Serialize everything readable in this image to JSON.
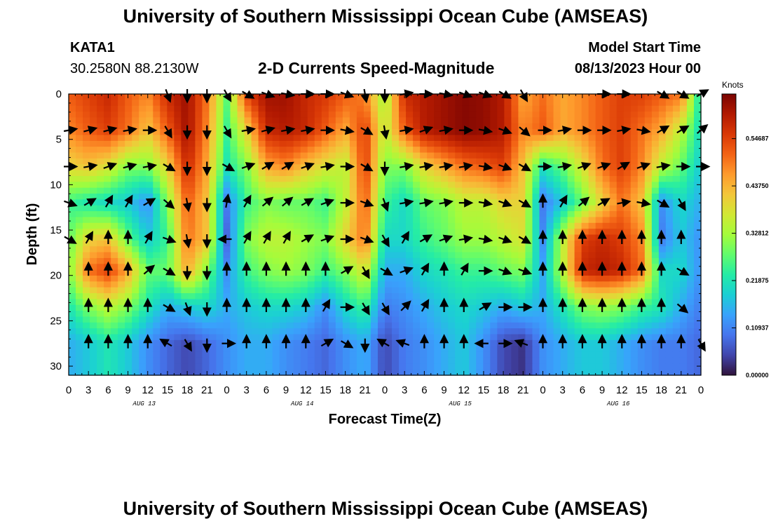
{
  "page": {
    "title": "University of Southern Mississippi Ocean Cube (AMSEAS)",
    "station": "KATA1",
    "coords": "30.2580N  88.2130W",
    "subtitle": "2-D Currents Speed-Magnitude",
    "model_start_label": "Model Start Time",
    "model_start_value": "08/13/2023 Hour 00",
    "bottom_title": "University of Southern Mississippi Ocean Cube (AMSEAS)"
  },
  "chart_data": {
    "type": "heatmap",
    "title": "2-D Currents Speed-Magnitude",
    "xlabel": "Forecast Time(Z)",
    "ylabel": "Depth (ft)",
    "x_range_hours": [
      0,
      96
    ],
    "ylim": [
      0,
      31
    ],
    "y_inverted": true,
    "x_tick_labels": [
      "0",
      "3",
      "6",
      "9",
      "12",
      "15",
      "18",
      "21",
      "0",
      "3",
      "6",
      "9",
      "12",
      "15",
      "18",
      "21",
      "0",
      "3",
      "6",
      "9",
      "12",
      "15",
      "18",
      "21",
      "0",
      "3",
      "6",
      "9",
      "12",
      "15",
      "18",
      "21",
      "0"
    ],
    "y_ticks": [
      0,
      5,
      10,
      15,
      20,
      25,
      30
    ],
    "day_labels": [
      {
        "label": "AUG 13",
        "hour": 12
      },
      {
        "label": "AUG 14",
        "hour": 36
      },
      {
        "label": "AUG 15",
        "hour": 60
      },
      {
        "label": "AUG 16",
        "hour": 84
      }
    ],
    "colorbar": {
      "title": "Knots",
      "min": 0.0,
      "max": 0.65,
      "tick_labels": [
        "0.00000",
        "0.10937",
        "0.21875",
        "0.32812",
        "0.43750",
        "0.54687"
      ],
      "tick_values": [
        0.0,
        0.10937,
        0.21875,
        0.32812,
        0.4375,
        0.54687
      ],
      "colors": [
        "#30123b",
        "#4145ab",
        "#4675ed",
        "#39a2fc",
        "#1bcfd4",
        "#24eca6",
        "#61fc6c",
        "#a4fc3b",
        "#d1e834",
        "#f3c63a",
        "#fe9b2d",
        "#f36315",
        "#d93806",
        "#b11901",
        "#7a0402"
      ]
    },
    "depth_levels_ft": [
      0,
      4,
      8,
      12,
      16,
      19.5,
      23.5,
      27.5
    ],
    "time_hours": [
      0,
      3,
      6,
      9,
      12,
      15,
      18,
      21,
      24,
      27,
      30,
      33,
      36,
      39,
      42,
      45,
      48,
      51,
      54,
      57,
      60,
      63,
      66,
      69,
      72,
      75,
      78,
      81,
      84,
      87,
      90,
      93,
      96
    ],
    "speed_knots": [
      [
        0.52,
        0.55,
        0.58,
        0.52,
        0.48,
        0.58,
        0.62,
        0.5,
        0.28,
        0.55,
        0.62,
        0.62,
        0.58,
        0.56,
        0.52,
        0.48,
        0.32,
        0.58,
        0.6,
        0.62,
        0.64,
        0.63,
        0.6,
        0.45,
        0.5,
        0.45,
        0.48,
        0.52,
        0.55,
        0.55,
        0.52,
        0.5,
        0.2
      ],
      [
        0.48,
        0.52,
        0.55,
        0.5,
        0.42,
        0.52,
        0.62,
        0.48,
        0.25,
        0.4,
        0.58,
        0.6,
        0.58,
        0.52,
        0.45,
        0.55,
        0.35,
        0.52,
        0.6,
        0.62,
        0.64,
        0.63,
        0.6,
        0.48,
        0.52,
        0.45,
        0.48,
        0.52,
        0.55,
        0.5,
        0.45,
        0.35,
        0.2
      ],
      [
        0.4,
        0.42,
        0.38,
        0.3,
        0.3,
        0.4,
        0.58,
        0.45,
        0.22,
        0.3,
        0.45,
        0.48,
        0.42,
        0.38,
        0.35,
        0.55,
        0.3,
        0.3,
        0.4,
        0.45,
        0.5,
        0.52,
        0.55,
        0.42,
        0.22,
        0.28,
        0.38,
        0.5,
        0.55,
        0.48,
        0.35,
        0.28,
        0.18
      ],
      [
        0.25,
        0.22,
        0.2,
        0.18,
        0.12,
        0.3,
        0.52,
        0.42,
        0.1,
        0.25,
        0.3,
        0.28,
        0.28,
        0.25,
        0.35,
        0.52,
        0.25,
        0.2,
        0.28,
        0.3,
        0.35,
        0.35,
        0.4,
        0.4,
        0.1,
        0.18,
        0.28,
        0.4,
        0.5,
        0.42,
        0.12,
        0.2,
        0.15
      ],
      [
        0.28,
        0.4,
        0.42,
        0.28,
        0.18,
        0.25,
        0.5,
        0.42,
        0.08,
        0.3,
        0.35,
        0.35,
        0.32,
        0.3,
        0.4,
        0.5,
        0.2,
        0.2,
        0.25,
        0.28,
        0.32,
        0.32,
        0.35,
        0.38,
        0.12,
        0.35,
        0.55,
        0.58,
        0.55,
        0.48,
        0.1,
        0.18,
        0.12
      ],
      [
        0.3,
        0.5,
        0.55,
        0.45,
        0.28,
        0.28,
        0.45,
        0.3,
        0.12,
        0.25,
        0.3,
        0.32,
        0.3,
        0.25,
        0.3,
        0.38,
        0.15,
        0.15,
        0.2,
        0.22,
        0.25,
        0.25,
        0.28,
        0.3,
        0.15,
        0.35,
        0.58,
        0.6,
        0.58,
        0.5,
        0.2,
        0.2,
        0.12
      ],
      [
        0.22,
        0.3,
        0.35,
        0.3,
        0.22,
        0.15,
        0.18,
        0.2,
        0.15,
        0.18,
        0.2,
        0.2,
        0.18,
        0.12,
        0.2,
        0.25,
        0.1,
        0.12,
        0.15,
        0.18,
        0.2,
        0.18,
        0.15,
        0.18,
        0.15,
        0.22,
        0.3,
        0.32,
        0.3,
        0.25,
        0.22,
        0.15,
        0.1
      ],
      [
        0.15,
        0.18,
        0.22,
        0.18,
        0.12,
        0.08,
        0.05,
        0.08,
        0.12,
        0.15,
        0.15,
        0.12,
        0.1,
        0.08,
        0.12,
        0.15,
        0.05,
        0.1,
        0.12,
        0.15,
        0.18,
        0.12,
        0.05,
        0.03,
        0.12,
        0.15,
        0.18,
        0.18,
        0.15,
        0.12,
        0.1,
        0.1,
        0.08
      ]
    ],
    "arrow_direction_deg_math": [
      [
        null,
        null,
        null,
        null,
        null,
        -70,
        -90,
        -90,
        -60,
        -30,
        -20,
        -10,
        0,
        0,
        -20,
        -80,
        -90,
        10,
        0,
        -10,
        -20,
        -20,
        -30,
        -60,
        null,
        null,
        null,
        0,
        0,
        null,
        -30,
        -30,
        30
      ],
      [
        10,
        15,
        15,
        10,
        0,
        -60,
        -90,
        -90,
        -60,
        10,
        15,
        10,
        10,
        0,
        -10,
        -30,
        -80,
        10,
        20,
        10,
        0,
        -10,
        -20,
        -40,
        0,
        10,
        0,
        0,
        10,
        -10,
        30,
        30,
        40
      ],
      [
        0,
        10,
        20,
        15,
        10,
        -30,
        -90,
        -90,
        -30,
        20,
        30,
        30,
        20,
        10,
        0,
        -30,
        -90,
        10,
        10,
        10,
        10,
        -10,
        -20,
        -30,
        0,
        10,
        20,
        20,
        30,
        20,
        10,
        0,
        0
      ],
      [
        -20,
        30,
        60,
        60,
        30,
        -40,
        -80,
        -90,
        80,
        60,
        40,
        40,
        30,
        20,
        0,
        -20,
        -70,
        10,
        10,
        10,
        0,
        -10,
        -20,
        -30,
        90,
        60,
        40,
        30,
        10,
        -10,
        -30,
        -60,
        null
      ],
      [
        -30,
        60,
        90,
        90,
        60,
        -20,
        -80,
        -90,
        180,
        60,
        60,
        60,
        30,
        20,
        0,
        -20,
        -60,
        60,
        30,
        20,
        10,
        -10,
        -20,
        -30,
        90,
        90,
        90,
        90,
        90,
        90,
        90,
        90,
        null
      ],
      [
        null,
        90,
        90,
        90,
        40,
        -30,
        -90,
        -90,
        90,
        90,
        90,
        90,
        90,
        90,
        30,
        -60,
        -30,
        20,
        60,
        90,
        60,
        0,
        -20,
        -20,
        90,
        90,
        90,
        90,
        90,
        90,
        90,
        -30,
        null
      ],
      [
        null,
        90,
        90,
        90,
        90,
        -30,
        -70,
        -90,
        90,
        90,
        90,
        90,
        90,
        60,
        0,
        -60,
        -60,
        45,
        60,
        90,
        90,
        30,
        0,
        0,
        90,
        90,
        90,
        90,
        90,
        90,
        90,
        -40,
        null
      ],
      [
        null,
        90,
        90,
        90,
        90,
        150,
        -60,
        -90,
        0,
        90,
        90,
        90,
        90,
        30,
        -30,
        -90,
        150,
        160,
        90,
        90,
        90,
        180,
        0,
        160,
        90,
        90,
        90,
        90,
        90,
        90,
        90,
        90,
        -60
      ]
    ]
  }
}
